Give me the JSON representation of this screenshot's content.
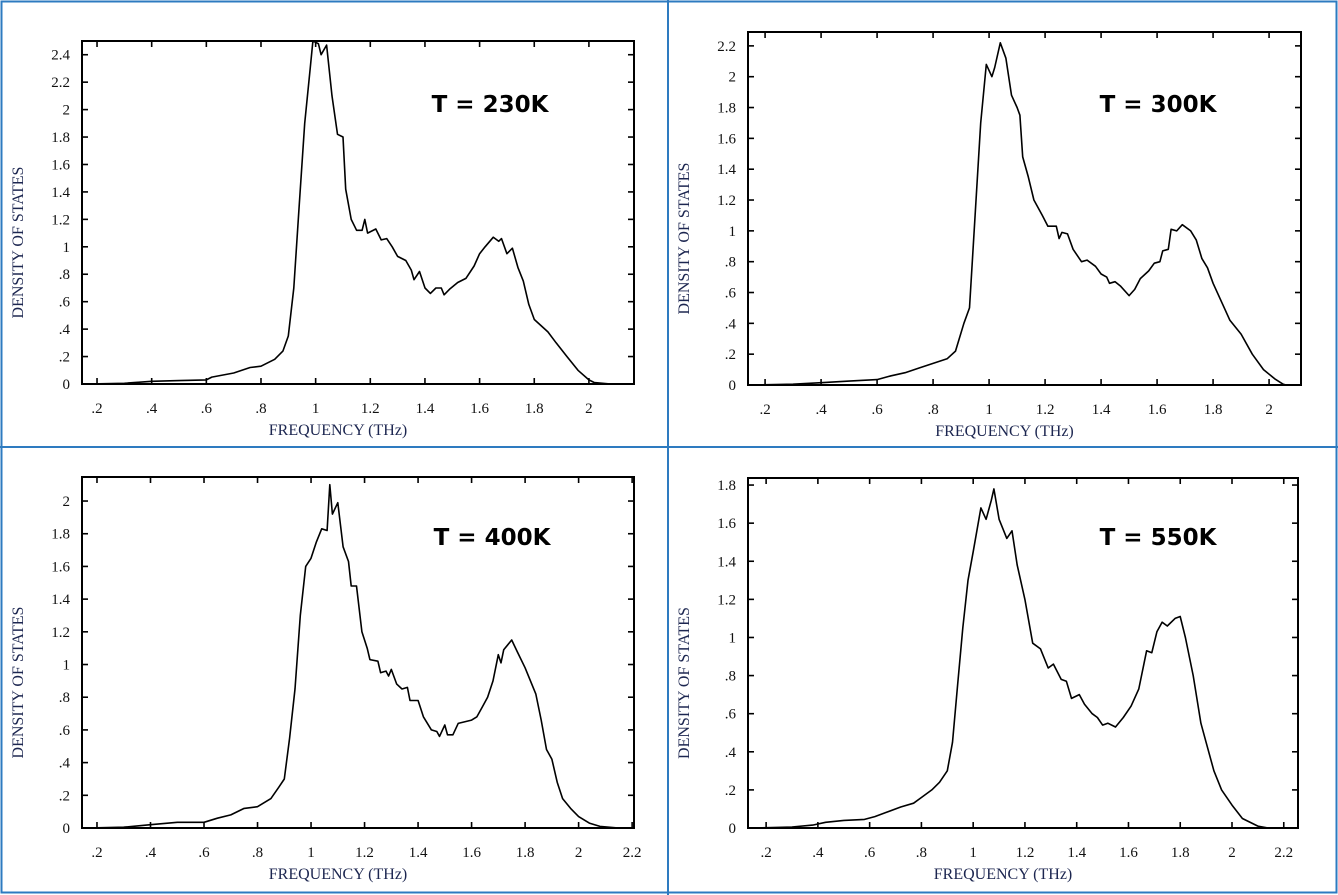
{
  "frame_color": "#2E7BC0",
  "line_color": "#000000",
  "chart_data": [
    {
      "type": "line",
      "annotation": "T = 230K",
      "xlabel": "FREQUENCY (THz)",
      "ylabel": "DENSITY OF STATES",
      "xlim": [
        0.145,
        2.165
      ],
      "ylim": [
        0,
        2.5
      ],
      "xticks": [
        {
          "v": 0.2,
          "t": ".2"
        },
        {
          "v": 0.4,
          "t": ".4"
        },
        {
          "v": 0.6,
          "t": ".6"
        },
        {
          "v": 0.8,
          "t": ".8"
        },
        {
          "v": 1,
          "t": "1"
        },
        {
          "v": 1.2,
          "t": "1.2"
        },
        {
          "v": 1.4,
          "t": "1.4"
        },
        {
          "v": 1.6,
          "t": "1.6"
        },
        {
          "v": 1.8,
          "t": "1.8"
        },
        {
          "v": 2,
          "t": "2"
        }
      ],
      "yticks": [
        {
          "v": 0,
          "t": "0"
        },
        {
          "v": 0.2,
          "t": ".2"
        },
        {
          "v": 0.4,
          "t": ".4"
        },
        {
          "v": 0.6,
          "t": ".6"
        },
        {
          "v": 0.8,
          "t": ".8"
        },
        {
          "v": 1,
          "t": "1"
        },
        {
          "v": 1.2,
          "t": "1.2"
        },
        {
          "v": 1.4,
          "t": "1.4"
        },
        {
          "v": 1.6,
          "t": "1.6"
        },
        {
          "v": 1.8,
          "t": "1.8"
        },
        {
          "v": 2,
          "t": "2"
        },
        {
          "v": 2.2,
          "t": "2.2"
        },
        {
          "v": 2.4,
          "t": "2.4"
        }
      ],
      "grid": false,
      "x": [
        0.16,
        0.3,
        0.4,
        0.5,
        0.6,
        0.62,
        0.7,
        0.76,
        0.8,
        0.85,
        0.88,
        0.9,
        0.92,
        0.94,
        0.96,
        0.98,
        0.99,
        1.01,
        1.02,
        1.04,
        1.06,
        1.08,
        1.1,
        1.11,
        1.13,
        1.15,
        1.17,
        1.18,
        1.19,
        1.22,
        1.24,
        1.26,
        1.28,
        1.3,
        1.33,
        1.35,
        1.36,
        1.38,
        1.4,
        1.42,
        1.44,
        1.46,
        1.47,
        1.49,
        1.52,
        1.55,
        1.58,
        1.6,
        1.62,
        1.65,
        1.67,
        1.68,
        1.7,
        1.72,
        1.74,
        1.76,
        1.78,
        1.8,
        1.85,
        1.88,
        1.92,
        1.96,
        2.0,
        2.02,
        2.08
      ],
      "y": [
        0,
        0.005,
        0.02,
        0.025,
        0.03,
        0.05,
        0.08,
        0.12,
        0.13,
        0.18,
        0.24,
        0.35,
        0.7,
        1.3,
        1.9,
        2.3,
        2.5,
        2.48,
        2.4,
        2.47,
        2.1,
        1.82,
        1.8,
        1.42,
        1.2,
        1.12,
        1.12,
        1.2,
        1.1,
        1.13,
        1.05,
        1.06,
        1.0,
        0.93,
        0.9,
        0.83,
        0.76,
        0.82,
        0.7,
        0.66,
        0.7,
        0.7,
        0.65,
        0.69,
        0.74,
        0.77,
        0.86,
        0.95,
        1.0,
        1.07,
        1.04,
        1.06,
        0.95,
        0.99,
        0.85,
        0.75,
        0.58,
        0.47,
        0.38,
        0.3,
        0.2,
        0.1,
        0.03,
        0.01,
        0
      ]
    },
    {
      "type": "line",
      "annotation": "T = 300K",
      "xlabel": "FREQUENCY (THz)",
      "ylabel": "DENSITY OF STATES",
      "xlim": [
        0.139,
        2.114
      ],
      "ylim": [
        0,
        2.29
      ],
      "xticks": [
        {
          "v": 0.2,
          "t": ".2"
        },
        {
          "v": 0.4,
          "t": ".4"
        },
        {
          "v": 0.6,
          "t": ".6"
        },
        {
          "v": 0.8,
          "t": ".8"
        },
        {
          "v": 1,
          "t": "1"
        },
        {
          "v": 1.2,
          "t": "1.2"
        },
        {
          "v": 1.4,
          "t": "1.4"
        },
        {
          "v": 1.6,
          "t": "1.6"
        },
        {
          "v": 1.8,
          "t": "1.8"
        },
        {
          "v": 2,
          "t": "2"
        }
      ],
      "yticks": [
        {
          "v": 0,
          "t": "0"
        },
        {
          "v": 0.2,
          "t": ".2"
        },
        {
          "v": 0.4,
          "t": ".4"
        },
        {
          "v": 0.6,
          "t": ".6"
        },
        {
          "v": 0.8,
          "t": ".8"
        },
        {
          "v": 1,
          "t": "1"
        },
        {
          "v": 1.2,
          "t": "1.2"
        },
        {
          "v": 1.4,
          "t": "1.4"
        },
        {
          "v": 1.6,
          "t": "1.6"
        },
        {
          "v": 1.8,
          "t": "1.8"
        },
        {
          "v": 2,
          "t": "2"
        },
        {
          "v": 2.2,
          "t": "2.2"
        }
      ],
      "grid": false,
      "x": [
        0.16,
        0.3,
        0.4,
        0.5,
        0.6,
        0.65,
        0.7,
        0.75,
        0.8,
        0.85,
        0.88,
        0.91,
        0.93,
        0.95,
        0.97,
        0.99,
        1.01,
        1.02,
        1.04,
        1.06,
        1.08,
        1.1,
        1.11,
        1.12,
        1.14,
        1.16,
        1.19,
        1.21,
        1.24,
        1.25,
        1.26,
        1.28,
        1.3,
        1.33,
        1.35,
        1.38,
        1.4,
        1.42,
        1.43,
        1.45,
        1.47,
        1.5,
        1.52,
        1.54,
        1.57,
        1.59,
        1.61,
        1.62,
        1.64,
        1.65,
        1.67,
        1.69,
        1.72,
        1.74,
        1.76,
        1.78,
        1.8,
        1.84,
        1.86,
        1.9,
        1.94,
        1.98,
        2.02,
        2.05,
        2.06
      ],
      "y": [
        0,
        0.005,
        0.015,
        0.025,
        0.035,
        0.06,
        0.08,
        0.11,
        0.14,
        0.17,
        0.22,
        0.4,
        0.5,
        1.1,
        1.7,
        2.08,
        2.0,
        2.06,
        2.22,
        2.12,
        1.88,
        1.8,
        1.75,
        1.48,
        1.35,
        1.2,
        1.1,
        1.03,
        1.03,
        0.95,
        0.99,
        0.98,
        0.88,
        0.8,
        0.81,
        0.77,
        0.72,
        0.7,
        0.66,
        0.67,
        0.64,
        0.58,
        0.62,
        0.69,
        0.74,
        0.79,
        0.8,
        0.87,
        0.88,
        1.01,
        1.0,
        1.04,
        1.0,
        0.94,
        0.82,
        0.76,
        0.66,
        0.5,
        0.42,
        0.33,
        0.2,
        0.1,
        0.04,
        0.005,
        0
      ]
    },
    {
      "type": "line",
      "annotation": "T = 400K",
      "xlabel": "FREQUENCY (THz)",
      "ylabel": "DENSITY OF STATES",
      "xlim": [
        0.144,
        2.207
      ],
      "ylim": [
        0,
        2.147
      ],
      "xticks": [
        {
          "v": 0.2,
          "t": ".2"
        },
        {
          "v": 0.4,
          "t": ".4"
        },
        {
          "v": 0.6,
          "t": ".6"
        },
        {
          "v": 0.8,
          "t": ".8"
        },
        {
          "v": 1,
          "t": "1"
        },
        {
          "v": 1.2,
          "t": "1.2"
        },
        {
          "v": 1.4,
          "t": "1.4"
        },
        {
          "v": 1.6,
          "t": "1.6"
        },
        {
          "v": 1.8,
          "t": "1.8"
        },
        {
          "v": 2,
          "t": "2"
        },
        {
          "v": 2.2,
          "t": "2.2"
        }
      ],
      "yticks": [
        {
          "v": 0,
          "t": "0"
        },
        {
          "v": 0.2,
          "t": ".2"
        },
        {
          "v": 0.4,
          "t": ".4"
        },
        {
          "v": 0.6,
          "t": ".6"
        },
        {
          "v": 0.8,
          "t": ".8"
        },
        {
          "v": 1,
          "t": "1"
        },
        {
          "v": 1.2,
          "t": "1.2"
        },
        {
          "v": 1.4,
          "t": "1.4"
        },
        {
          "v": 1.6,
          "t": "1.6"
        },
        {
          "v": 1.8,
          "t": "1.8"
        },
        {
          "v": 2,
          "t": "2"
        }
      ],
      "grid": false,
      "x": [
        0.16,
        0.3,
        0.4,
        0.5,
        0.6,
        0.65,
        0.7,
        0.75,
        0.8,
        0.85,
        0.88,
        0.9,
        0.92,
        0.94,
        0.96,
        0.98,
        1.0,
        1.02,
        1.04,
        1.06,
        1.07,
        1.08,
        1.1,
        1.12,
        1.14,
        1.15,
        1.17,
        1.19,
        1.21,
        1.22,
        1.25,
        1.26,
        1.28,
        1.29,
        1.3,
        1.32,
        1.34,
        1.36,
        1.37,
        1.4,
        1.42,
        1.45,
        1.47,
        1.48,
        1.5,
        1.51,
        1.53,
        1.55,
        1.6,
        1.62,
        1.64,
        1.66,
        1.68,
        1.7,
        1.71,
        1.72,
        1.75,
        1.77,
        1.8,
        1.84,
        1.86,
        1.88,
        1.9,
        1.92,
        1.94,
        1.97,
        2.0,
        2.04,
        2.08,
        2.15
      ],
      "y": [
        0,
        0.005,
        0.02,
        0.035,
        0.035,
        0.06,
        0.08,
        0.12,
        0.13,
        0.18,
        0.25,
        0.3,
        0.55,
        0.85,
        1.3,
        1.6,
        1.65,
        1.75,
        1.83,
        1.82,
        2.1,
        1.92,
        1.99,
        1.72,
        1.63,
        1.48,
        1.48,
        1.2,
        1.1,
        1.03,
        1.02,
        0.95,
        0.96,
        0.93,
        0.97,
        0.88,
        0.85,
        0.86,
        0.78,
        0.78,
        0.68,
        0.6,
        0.59,
        0.56,
        0.63,
        0.57,
        0.57,
        0.64,
        0.66,
        0.68,
        0.74,
        0.8,
        0.9,
        1.06,
        1.01,
        1.09,
        1.15,
        1.08,
        0.98,
        0.82,
        0.66,
        0.48,
        0.42,
        0.28,
        0.18,
        0.12,
        0.07,
        0.03,
        0.01,
        0
      ]
    },
    {
      "type": "line",
      "annotation": "T = 550K",
      "xlabel": "FREQUENCY (THz)",
      "ylabel": "DENSITY OF STATES",
      "xlim": [
        0.13,
        2.255
      ],
      "ylim": [
        0,
        1.837
      ],
      "xticks": [
        {
          "v": 0.2,
          "t": ".2"
        },
        {
          "v": 0.4,
          "t": ".4"
        },
        {
          "v": 0.6,
          "t": ".6"
        },
        {
          "v": 0.8,
          "t": ".8"
        },
        {
          "v": 1,
          "t": "1"
        },
        {
          "v": 1.2,
          "t": "1.2"
        },
        {
          "v": 1.4,
          "t": "1.4"
        },
        {
          "v": 1.6,
          "t": "1.6"
        },
        {
          "v": 1.8,
          "t": "1.8"
        },
        {
          "v": 2,
          "t": "2"
        },
        {
          "v": 2.2,
          "t": "2.2"
        }
      ],
      "yticks": [
        {
          "v": 0,
          "t": "0"
        },
        {
          "v": 0.2,
          "t": ".2"
        },
        {
          "v": 0.4,
          "t": ".4"
        },
        {
          "v": 0.6,
          "t": ".6"
        },
        {
          "v": 0.8,
          "t": ".8"
        },
        {
          "v": 1,
          "t": "1"
        },
        {
          "v": 1.2,
          "t": "1.2"
        },
        {
          "v": 1.4,
          "t": "1.4"
        },
        {
          "v": 1.6,
          "t": "1.6"
        },
        {
          "v": 1.8,
          "t": "1.8"
        }
      ],
      "grid": false,
      "x": [
        0.16,
        0.3,
        0.38,
        0.43,
        0.5,
        0.58,
        0.62,
        0.66,
        0.72,
        0.77,
        0.8,
        0.84,
        0.87,
        0.9,
        0.92,
        0.94,
        0.96,
        0.98,
        1.0,
        1.03,
        1.05,
        1.07,
        1.08,
        1.1,
        1.13,
        1.15,
        1.17,
        1.2,
        1.23,
        1.26,
        1.29,
        1.31,
        1.34,
        1.36,
        1.38,
        1.41,
        1.43,
        1.46,
        1.48,
        1.5,
        1.52,
        1.55,
        1.58,
        1.61,
        1.64,
        1.67,
        1.69,
        1.71,
        1.73,
        1.75,
        1.78,
        1.8,
        1.82,
        1.85,
        1.88,
        1.9,
        1.93,
        1.96,
        2.0,
        2.04,
        2.1,
        2.14
      ],
      "y": [
        0,
        0.005,
        0.015,
        0.03,
        0.04,
        0.045,
        0.06,
        0.08,
        0.11,
        0.13,
        0.16,
        0.2,
        0.24,
        0.3,
        0.45,
        0.75,
        1.05,
        1.3,
        1.45,
        1.68,
        1.62,
        1.72,
        1.78,
        1.62,
        1.52,
        1.56,
        1.38,
        1.2,
        0.97,
        0.94,
        0.84,
        0.86,
        0.78,
        0.77,
        0.68,
        0.7,
        0.65,
        0.6,
        0.58,
        0.54,
        0.55,
        0.53,
        0.58,
        0.64,
        0.73,
        0.93,
        0.92,
        1.03,
        1.08,
        1.06,
        1.1,
        1.11,
        1.0,
        0.8,
        0.55,
        0.45,
        0.3,
        0.2,
        0.12,
        0.05,
        0.01,
        0
      ]
    }
  ]
}
